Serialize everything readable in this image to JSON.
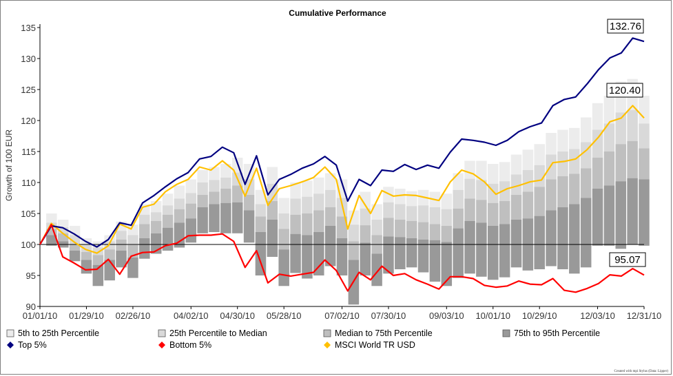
{
  "chart_data": {
    "type": "area",
    "title": "Cumulative Performance",
    "xlabel": "",
    "ylabel": "Growth of 100 EUR",
    "ylim": [
      90,
      135
    ],
    "yticks": [
      90,
      95,
      100,
      105,
      110,
      115,
      120,
      125,
      130,
      135
    ],
    "x_tick_labels": [
      "01/01/10",
      "01/29/10",
      "02/26/10",
      "04/02/10",
      "04/30/10",
      "05/28/10",
      "07/02/10",
      "07/30/10",
      "09/03/10",
      "10/01/10",
      "10/29/10",
      "12/03/10",
      "12/31/10"
    ],
    "x_tick_weeks": [
      0,
      4,
      8,
      13,
      17,
      21,
      26,
      30,
      35,
      39,
      43,
      48,
      52
    ],
    "n_weeks": 52,
    "legend_position": "bottom",
    "baseline": 100,
    "bands": [
      {
        "name": "5th to 25th Percentile",
        "color": "#ececec"
      },
      {
        "name": "25th Percentile to Median",
        "color": "#d9d9d9"
      },
      {
        "name": "Median to 75th Percentile",
        "color": "#bfbfbf"
      },
      {
        "name": "75th to 95th Percentile",
        "color": "#999999"
      }
    ],
    "band_values": [
      [
        100,
        100,
        100,
        100,
        100
      ],
      [
        105,
        103.5,
        102.5,
        101.5,
        99.8
      ],
      [
        104,
        102.8,
        101.8,
        100.5,
        99.5
      ],
      [
        103,
        101.5,
        100,
        99,
        97.3
      ],
      [
        101,
        100,
        98.8,
        97.5,
        95.3
      ],
      [
        100.5,
        99.5,
        98.3,
        96.7,
        93.3
      ],
      [
        101.5,
        100.5,
        99.2,
        97.5,
        94.2
      ],
      [
        103.7,
        102.2,
        100.8,
        99,
        96.3
      ],
      [
        103.2,
        101.5,
        99.9,
        97.9,
        94.6
      ],
      [
        106.5,
        104.8,
        103.3,
        101,
        97.7
      ],
      [
        107,
        105.2,
        103.8,
        101.8,
        98.5
      ],
      [
        108.2,
        106.3,
        104.8,
        102.7,
        99
      ],
      [
        109.5,
        107.4,
        105.7,
        103.5,
        99.5
      ],
      [
        110.5,
        108.3,
        106.6,
        104.2,
        100.3
      ],
      [
        112,
        110,
        108,
        106,
        101.8
      ],
      [
        112.5,
        110.4,
        108.5,
        106.5,
        102
      ],
      [
        113,
        110.8,
        109,
        106.7,
        101.8
      ],
      [
        114,
        111.6,
        109.5,
        106.8,
        101.8
      ],
      [
        113,
        110.5,
        108,
        105.5,
        100.3
      ],
      [
        108.8,
        106.5,
        104.5,
        102,
        95
      ],
      [
        112.5,
        109.8,
        107,
        104,
        98
      ],
      [
        107.5,
        105,
        102.5,
        99.2,
        93.3
      ],
      [
        110,
        107.4,
        104.8,
        101.7,
        95.4
      ],
      [
        110.3,
        107.7,
        105,
        101.5,
        94.5
      ],
      [
        110.8,
        108.2,
        105.5,
        102,
        95
      ],
      [
        111.5,
        108.8,
        106,
        103,
        96.5
      ],
      [
        110.5,
        107.5,
        104.5,
        101,
        95
      ],
      [
        105.5,
        103.2,
        100.5,
        97.5,
        90.3
      ],
      [
        108.5,
        105.8,
        103.1,
        100.3,
        95
      ],
      [
        106.5,
        104,
        101.5,
        98.5,
        93.3
      ],
      [
        109.3,
        106.8,
        104.3,
        101.3,
        95.3
      ],
      [
        109,
        106.5,
        104,
        101.2,
        96
      ],
      [
        108.6,
        106.2,
        103.8,
        101,
        96.3
      ],
      [
        108.8,
        106.3,
        103.6,
        100.8,
        95.5
      ],
      [
        108.5,
        106,
        103.3,
        100.7,
        94
      ],
      [
        108.2,
        105.7,
        103,
        100.4,
        93.3
      ],
      [
        111.5,
        108.8,
        105.8,
        102.6,
        94.6
      ],
      [
        113.5,
        110.6,
        107.4,
        103.8,
        95.3
      ],
      [
        113.5,
        110.4,
        107.2,
        103.5,
        94.8
      ],
      [
        113,
        109.8,
        106.7,
        103,
        94.3
      ],
      [
        113.3,
        110.2,
        107,
        103.3,
        94.7
      ],
      [
        114.5,
        111.3,
        108,
        104,
        96.3
      ],
      [
        115.3,
        112,
        108.5,
        104.2,
        95.8
      ],
      [
        116.2,
        112.8,
        109.3,
        104.6,
        96
      ],
      [
        118,
        114.5,
        110.5,
        105.5,
        96.5
      ],
      [
        118.5,
        115,
        111,
        106,
        96
      ],
      [
        118.8,
        115.4,
        111.4,
        106.5,
        95.3
      ],
      [
        120.5,
        116.5,
        112.3,
        107.5,
        96.3
      ],
      [
        122.8,
        118.5,
        114,
        109,
        99.8
      ],
      [
        124,
        119.5,
        115,
        109.5,
        99.8
      ],
      [
        126.3,
        121.3,
        116.2,
        110.2,
        99.3
      ],
      [
        126.7,
        121.7,
        116.7,
        110.7,
        100
      ],
      [
        124,
        119.5,
        115.5,
        110.5,
        99.8
      ]
    ],
    "series": [
      {
        "name": "Top 5%",
        "color": "#000080",
        "values": [
          100,
          103,
          102.7,
          101.7,
          100.5,
          99.6,
          100.8,
          103.5,
          103.1,
          106.7,
          107.9,
          109.3,
          110.6,
          111.6,
          113.8,
          114.2,
          115.7,
          114.8,
          109.7,
          114.3,
          108,
          110.5,
          111.3,
          112.3,
          113,
          114.2,
          112.8,
          107,
          110.5,
          109.5,
          112,
          111.8,
          112.9,
          112.1,
          112.8,
          112.3,
          114.9,
          117,
          116.8,
          116.5,
          116,
          116.8,
          118.2,
          119,
          119.6,
          122.4,
          123.4,
          123.8,
          125.9,
          128.2,
          130.1,
          130.9,
          133.3,
          132.76
        ]
      },
      {
        "name": "Bottom 5%",
        "color": "#ff0000",
        "values": [
          100,
          103.2,
          98,
          97,
          95.9,
          96,
          97.6,
          95.2,
          98.1,
          98.7,
          98.8,
          99.8,
          100.2,
          101.4,
          101.5,
          101.5,
          101.7,
          100.5,
          96.3,
          99,
          93.8,
          95.2,
          94.9,
          95.2,
          95.5,
          97.5,
          95.8,
          92.5,
          95.5,
          94.3,
          96.5,
          95,
          95.3,
          94.3,
          93.6,
          92.8,
          94.8,
          94.8,
          94.5,
          93.4,
          93.1,
          93.3,
          94.1,
          93.6,
          93.5,
          94.5,
          92.6,
          92.3,
          92.9,
          93.7,
          95.1,
          94.9,
          96.1,
          95.07
        ]
      },
      {
        "name": "MSCI World TR USD",
        "color": "#ffc000",
        "values": [
          100,
          103.4,
          101.8,
          100.4,
          99.2,
          98.6,
          99.8,
          103.3,
          102.5,
          106,
          106.5,
          108.5,
          109.7,
          110.5,
          112.5,
          112,
          113.5,
          112,
          107.8,
          112.3,
          106.3,
          109,
          109.5,
          110.1,
          110.8,
          112.5,
          110.5,
          102.5,
          107.9,
          105,
          108.7,
          107.8,
          108,
          107.9,
          107.5,
          107.1,
          110.1,
          112,
          111.4,
          110.1,
          108.1,
          109,
          109.5,
          110.1,
          110.4,
          113.2,
          113.4,
          113.8,
          115.3,
          117.3,
          119.8,
          120.4,
          122.4,
          120.4
        ]
      }
    ],
    "callouts": [
      "132.76",
      "120.40",
      "95.07"
    ]
  },
  "legend": [
    {
      "label": "5th to 25th Percentile",
      "symbol": "square",
      "color": "#ececec"
    },
    {
      "label": "25th Percentile to Median",
      "symbol": "square",
      "color": "#d9d9d9"
    },
    {
      "label": "Median to 75th Percentile",
      "symbol": "square",
      "color": "#bfbfbf"
    },
    {
      "label": "75th to 95th Percentile",
      "symbol": "square",
      "color": "#999999"
    },
    {
      "label": "Top 5%",
      "symbol": "diamond",
      "color": "#000080"
    },
    {
      "label": "Bottom 5%",
      "symbol": "diamond",
      "color": "#ff0000"
    },
    {
      "label": "MSCI World TR USD",
      "symbol": "diamond",
      "color": "#ffc000"
    }
  ],
  "credit": "Created with mpi Stylus (Data: Lipper)"
}
